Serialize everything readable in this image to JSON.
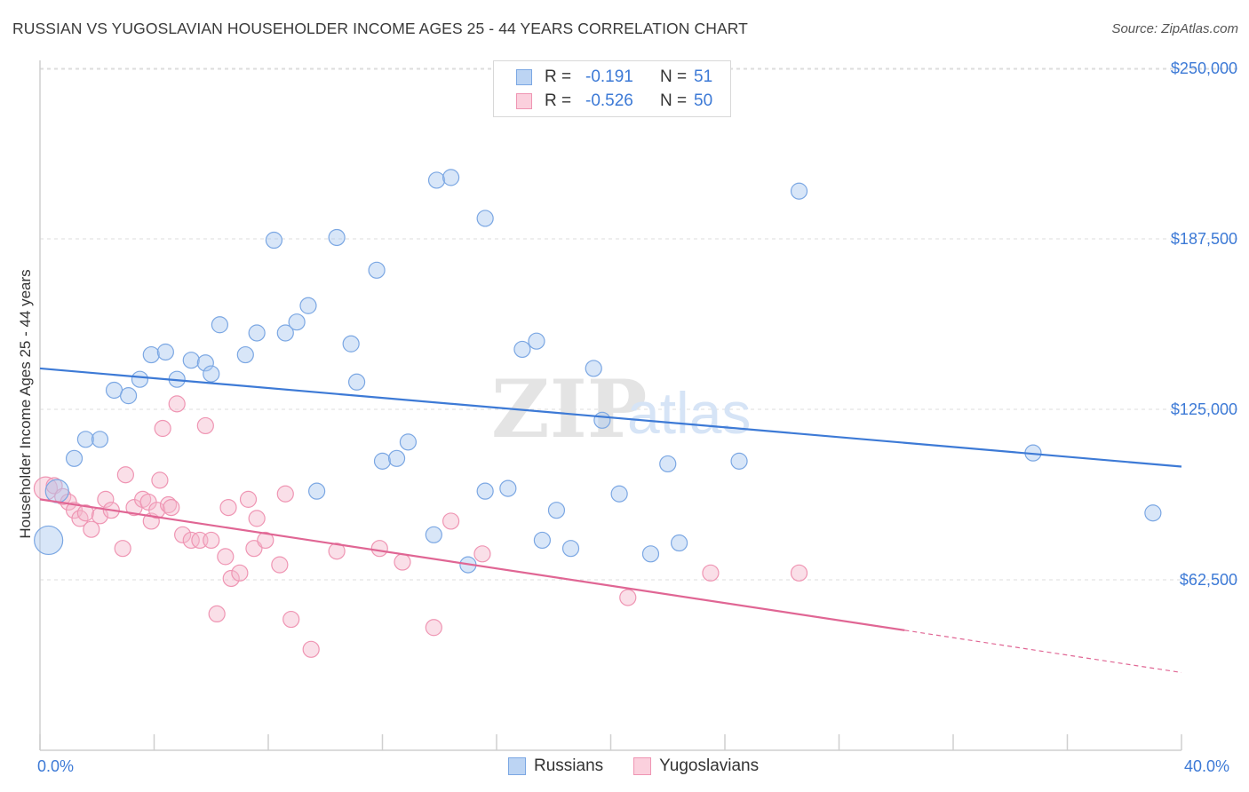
{
  "title": "RUSSIAN VS YUGOSLAVIAN HOUSEHOLDER INCOME AGES 25 - 44 YEARS CORRELATION CHART",
  "source": "Source: ZipAtlas.com",
  "watermark": {
    "zip": "ZIP",
    "atlas": "atlas"
  },
  "legend": {
    "russians": {
      "r_label": "R =",
      "r_value": "-0.191",
      "n_label": "N =",
      "n_value": "51"
    },
    "yugoslavians": {
      "r_label": "R =",
      "r_value": "-0.526",
      "n_label": "N =",
      "n_value": "50"
    }
  },
  "colors": {
    "russians": "#3d7ad6",
    "yugoslavians": "#e06694",
    "russians_fill": "#a9c8ef",
    "yugoslavians_fill": "#f5b8cb"
  },
  "chart_data": {
    "type": "scatter",
    "title": "RUSSIAN VS YUGOSLAVIAN HOUSEHOLDER INCOME AGES 25 - 44 YEARS CORRELATION CHART",
    "xlabel": "",
    "ylabel": "Householder Income Ages 25 - 44 years",
    "xlim": [
      0,
      40
    ],
    "ylim": [
      0,
      262500
    ],
    "x_tick_labels": [
      "0.0%",
      "40.0%"
    ],
    "y_ticks": [
      62500,
      125000,
      187500,
      250000
    ],
    "y_tick_labels": [
      "$62,500",
      "$125,000",
      "$187,500",
      "$250,000"
    ],
    "grid": true,
    "legend_position": "top-center",
    "series": [
      {
        "name": "Russians",
        "trend": {
          "x": [
            0,
            40
          ],
          "y": [
            140000,
            104000
          ]
        },
        "points": [
          [
            0.3,
            77000
          ],
          [
            0.6,
            95000
          ],
          [
            1.2,
            107000
          ],
          [
            1.6,
            114000
          ],
          [
            2.1,
            114000
          ],
          [
            2.6,
            132000
          ],
          [
            3.1,
            130000
          ],
          [
            3.5,
            136000
          ],
          [
            3.9,
            145000
          ],
          [
            4.4,
            146000
          ],
          [
            4.8,
            136000
          ],
          [
            5.3,
            143000
          ],
          [
            5.8,
            142000
          ],
          [
            6.0,
            138000
          ],
          [
            6.3,
            156000
          ],
          [
            7.2,
            145000
          ],
          [
            7.6,
            153000
          ],
          [
            8.2,
            187000
          ],
          [
            8.6,
            153000
          ],
          [
            9.0,
            157000
          ],
          [
            9.4,
            163000
          ],
          [
            9.7,
            95000
          ],
          [
            10.4,
            188000
          ],
          [
            10.9,
            149000
          ],
          [
            11.1,
            135000
          ],
          [
            11.8,
            176000
          ],
          [
            12.0,
            106000
          ],
          [
            12.5,
            107000
          ],
          [
            12.9,
            113000
          ],
          [
            13.8,
            79000
          ],
          [
            13.9,
            209000
          ],
          [
            14.4,
            210000
          ],
          [
            15.0,
            68000
          ],
          [
            15.6,
            195000
          ],
          [
            15.6,
            95000
          ],
          [
            16.4,
            96000
          ],
          [
            16.9,
            147000
          ],
          [
            17.4,
            150000
          ],
          [
            17.6,
            77000
          ],
          [
            18.1,
            88000
          ],
          [
            18.6,
            74000
          ],
          [
            19.4,
            140000
          ],
          [
            19.7,
            121000
          ],
          [
            20.3,
            94000
          ],
          [
            21.4,
            72000
          ],
          [
            22.0,
            105000
          ],
          [
            22.4,
            76000
          ],
          [
            24.5,
            106000
          ],
          [
            26.6,
            205000
          ],
          [
            34.8,
            109000
          ],
          [
            39.0,
            87000
          ]
        ],
        "sizes": "point radii drawn in script"
      },
      {
        "name": "Yugoslavians",
        "trend": {
          "x": [
            0,
            30.3
          ],
          "y": [
            92000,
            44000
          ]
        },
        "trend_extrapolated": {
          "x": [
            30.3,
            40
          ],
          "y": [
            44000,
            28500
          ]
        },
        "points": [
          [
            0.2,
            96000
          ],
          [
            0.5,
            97000
          ],
          [
            0.8,
            93000
          ],
          [
            1.0,
            91000
          ],
          [
            1.2,
            88000
          ],
          [
            1.4,
            85000
          ],
          [
            1.6,
            87000
          ],
          [
            1.8,
            81000
          ],
          [
            2.1,
            86000
          ],
          [
            2.3,
            92000
          ],
          [
            2.5,
            88000
          ],
          [
            2.9,
            74000
          ],
          [
            3.0,
            101000
          ],
          [
            3.3,
            89000
          ],
          [
            3.6,
            92000
          ],
          [
            3.8,
            91000
          ],
          [
            3.9,
            84000
          ],
          [
            4.1,
            88000
          ],
          [
            4.2,
            99000
          ],
          [
            4.3,
            118000
          ],
          [
            4.5,
            90000
          ],
          [
            4.6,
            89000
          ],
          [
            4.8,
            127000
          ],
          [
            5.0,
            79000
          ],
          [
            5.3,
            77000
          ],
          [
            5.6,
            77000
          ],
          [
            5.8,
            119000
          ],
          [
            6.0,
            77000
          ],
          [
            6.2,
            50000
          ],
          [
            6.5,
            71000
          ],
          [
            6.6,
            89000
          ],
          [
            6.7,
            63000
          ],
          [
            7.0,
            65000
          ],
          [
            7.3,
            92000
          ],
          [
            7.5,
            74000
          ],
          [
            7.6,
            85000
          ],
          [
            7.9,
            77000
          ],
          [
            8.4,
            68000
          ],
          [
            8.6,
            94000
          ],
          [
            8.8,
            48000
          ],
          [
            9.5,
            37000
          ],
          [
            10.4,
            73000
          ],
          [
            11.9,
            74000
          ],
          [
            12.7,
            69000
          ],
          [
            13.8,
            45000
          ],
          [
            14.4,
            84000
          ],
          [
            15.5,
            72000
          ],
          [
            20.6,
            56000
          ],
          [
            23.5,
            65000
          ],
          [
            26.6,
            65000
          ]
        ]
      }
    ]
  },
  "bottom_legend": {
    "russians": "Russians",
    "yugoslavians": "Yugoslavians"
  }
}
